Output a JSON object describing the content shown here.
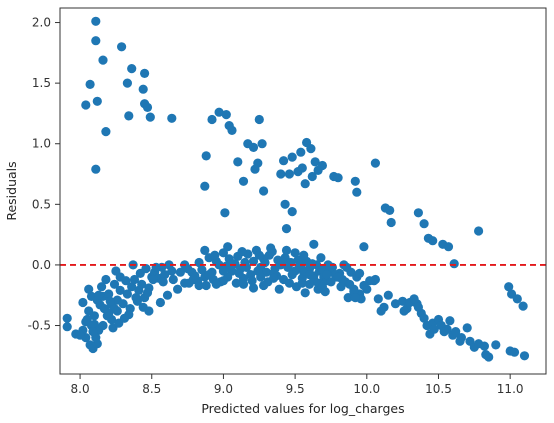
{
  "chart_data": {
    "type": "scatter",
    "title": "",
    "xlabel": "Predicted values for log_charges",
    "ylabel": "Residuals",
    "xlim": [
      7.86,
      11.25
    ],
    "ylim": [
      -0.9,
      2.12
    ],
    "xticks": [
      "8.0",
      "8.5",
      "9.0",
      "9.5",
      "10.0",
      "10.5",
      "11.0"
    ],
    "yticks": [
      "-0.5",
      "0.0",
      "0.5",
      "1.0",
      "1.5",
      "2.0"
    ],
    "grid": false,
    "point_color": "#1f77b4",
    "reference_line": {
      "y": 0.0,
      "color": "#e31a1c",
      "style": "dashed"
    },
    "points": [
      [
        8.11,
        2.01
      ],
      [
        8.11,
        1.85
      ],
      [
        8.29,
        1.8
      ],
      [
        8.36,
        1.62
      ],
      [
        8.45,
        1.58
      ],
      [
        8.16,
        1.69
      ],
      [
        8.07,
        1.49
      ],
      [
        8.33,
        1.5
      ],
      [
        8.44,
        1.45
      ],
      [
        8.04,
        1.32
      ],
      [
        8.12,
        1.35
      ],
      [
        8.18,
        1.1
      ],
      [
        8.45,
        1.33
      ],
      [
        8.47,
        1.3
      ],
      [
        8.49,
        1.22
      ],
      [
        8.34,
        1.23
      ],
      [
        8.64,
        1.21
      ],
      [
        8.11,
        0.79
      ],
      [
        8.97,
        1.26
      ],
      [
        9.02,
        1.24
      ],
      [
        8.92,
        1.2
      ],
      [
        9.04,
        1.15
      ],
      [
        9.06,
        1.11
      ],
      [
        9.25,
        1.2
      ],
      [
        9.17,
        1.0
      ],
      [
        9.21,
        0.97
      ],
      [
        9.27,
        1.0
      ],
      [
        9.1,
        0.85
      ],
      [
        9.24,
        0.84
      ],
      [
        8.88,
        0.9
      ],
      [
        9.14,
        0.69
      ],
      [
        8.87,
        0.65
      ],
      [
        9.01,
        0.43
      ],
      [
        9.28,
        0.61
      ],
      [
        9.22,
        0.79
      ],
      [
        9.42,
        0.86
      ],
      [
        9.48,
        0.89
      ],
      [
        9.54,
        0.93
      ],
      [
        9.58,
        1.01
      ],
      [
        9.52,
        0.77
      ],
      [
        9.4,
        0.75
      ],
      [
        9.46,
        0.75
      ],
      [
        9.55,
        0.8
      ],
      [
        9.61,
        0.96
      ],
      [
        9.64,
        0.85
      ],
      [
        9.66,
        0.78
      ],
      [
        9.69,
        0.82
      ],
      [
        9.77,
        0.73
      ],
      [
        9.8,
        0.72
      ],
      [
        9.92,
        0.69
      ],
      [
        9.93,
        0.6
      ],
      [
        10.06,
        0.84
      ],
      [
        9.57,
        0.67
      ],
      [
        9.62,
        0.73
      ],
      [
        9.43,
        0.5
      ],
      [
        9.48,
        0.44
      ],
      [
        9.44,
        0.3
      ],
      [
        9.63,
        0.17
      ],
      [
        10.13,
        0.47
      ],
      [
        10.16,
        0.45
      ],
      [
        10.17,
        0.35
      ],
      [
        10.36,
        0.43
      ],
      [
        10.43,
        0.22
      ],
      [
        10.46,
        0.2
      ],
      [
        10.4,
        0.34
      ],
      [
        10.53,
        0.17
      ],
      [
        10.57,
        0.15
      ],
      [
        10.61,
        0.01
      ],
      [
        10.78,
        0.28
      ],
      [
        7.91,
        -0.44
      ],
      [
        7.91,
        -0.51
      ],
      [
        7.97,
        -0.57
      ],
      [
        8.02,
        -0.54
      ],
      [
        8.04,
        -0.6
      ],
      [
        8.07,
        -0.66
      ],
      [
        8.09,
        -0.69
      ],
      [
        8.12,
        -0.65
      ],
      [
        8.04,
        -0.47
      ],
      [
        8.06,
        -0.38
      ],
      [
        8.1,
        -0.42
      ],
      [
        8.14,
        -0.33
      ],
      [
        8.02,
        -0.31
      ],
      [
        8.08,
        -0.26
      ],
      [
        8.12,
        -0.29
      ],
      [
        8.16,
        -0.26
      ],
      [
        8.2,
        -0.24
      ],
      [
        8.15,
        -0.18
      ],
      [
        8.22,
        -0.33
      ],
      [
        8.06,
        -0.2
      ],
      [
        8.1,
        -0.49
      ],
      [
        8.13,
        -0.54
      ],
      [
        8.16,
        -0.5
      ],
      [
        8.19,
        -0.42
      ],
      [
        8.22,
        -0.45
      ],
      [
        8.24,
        -0.36
      ],
      [
        8.26,
        -0.29
      ],
      [
        8.28,
        -0.21
      ],
      [
        8.3,
        -0.32
      ],
      [
        8.33,
        -0.24
      ],
      [
        8.36,
        -0.18
      ],
      [
        8.38,
        -0.12
      ],
      [
        8.41,
        -0.21
      ],
      [
        8.43,
        -0.16
      ],
      [
        8.45,
        -0.27
      ],
      [
        8.48,
        -0.19
      ],
      [
        8.5,
        -0.1
      ],
      [
        8.52,
        -0.06
      ],
      [
        8.55,
        -0.11
      ],
      [
        8.57,
        -0.02
      ],
      [
        8.59,
        -0.08
      ],
      [
        8.62,
        0.0
      ],
      [
        8.64,
        -0.05
      ],
      [
        8.2,
        -0.4
      ],
      [
        8.24,
        -0.16
      ],
      [
        8.28,
        -0.1
      ],
      [
        8.32,
        -0.13
      ],
      [
        8.35,
        -0.36
      ],
      [
        8.4,
        -0.3
      ],
      [
        8.44,
        -0.35
      ],
      [
        8.47,
        -0.23
      ],
      [
        8.51,
        -0.12
      ],
      [
        8.34,
        -0.41
      ],
      [
        8.18,
        -0.12
      ],
      [
        8.25,
        -0.05
      ],
      [
        8.37,
        0.0
      ],
      [
        8.42,
        -0.07
      ],
      [
        8.46,
        -0.03
      ],
      [
        8.53,
        -0.02
      ],
      [
        8.58,
        -0.14
      ],
      [
        8.65,
        -0.12
      ],
      [
        8.7,
        -0.06
      ],
      [
        8.73,
        -0.15
      ],
      [
        8.68,
        -0.2
      ],
      [
        8.61,
        -0.25
      ],
      [
        8.56,
        -0.31
      ],
      [
        8.48,
        -0.38
      ],
      [
        8.17,
        -0.36
      ],
      [
        8.13,
        -0.25
      ],
      [
        8.08,
        -0.5
      ],
      [
        8.11,
        -0.6
      ],
      [
        8.23,
        -0.52
      ],
      [
        8.27,
        -0.48
      ],
      [
        8.31,
        -0.44
      ],
      [
        8.39,
        -0.27
      ],
      [
        8.26,
        -0.38
      ],
      [
        8.21,
        -0.3
      ],
      [
        8.05,
        -0.45
      ],
      [
        8.0,
        -0.58
      ],
      [
        8.09,
        -0.55
      ],
      [
        8.73,
        0.0
      ],
      [
        8.75,
        -0.03
      ],
      [
        8.78,
        -0.06
      ],
      [
        8.8,
        -0.09
      ],
      [
        8.83,
        0.02
      ],
      [
        8.85,
        -0.04
      ],
      [
        8.87,
        -0.1
      ],
      [
        8.9,
        0.06
      ],
      [
        8.92,
        -0.06
      ],
      [
        8.95,
        0.03
      ],
      [
        8.97,
        0.0
      ],
      [
        9.0,
        0.1
      ],
      [
        9.02,
        -0.01
      ],
      [
        9.04,
        0.05
      ],
      [
        9.06,
        -0.05
      ],
      [
        9.08,
        0.01
      ],
      [
        9.1,
        0.07
      ],
      [
        9.12,
        -0.03
      ],
      [
        9.15,
        0.02
      ],
      [
        9.17,
        0.09
      ],
      [
        9.19,
        -0.08
      ],
      [
        9.21,
        0.03
      ],
      [
        9.23,
        0.12
      ],
      [
        9.26,
        -0.02
      ],
      [
        9.28,
        0.05
      ],
      [
        9.3,
        -0.06
      ],
      [
        9.32,
        0.08
      ],
      [
        9.34,
        0.11
      ],
      [
        9.36,
        -0.03
      ],
      [
        9.38,
        0.04
      ],
      [
        9.4,
        0.0
      ],
      [
        9.43,
        0.06
      ],
      [
        9.45,
        -0.02
      ],
      [
        9.47,
        0.02
      ],
      [
        9.5,
        -0.05
      ],
      [
        9.52,
        0.04
      ],
      [
        9.54,
        0.0
      ],
      [
        9.56,
        -0.06
      ],
      [
        9.58,
        0.03
      ],
      [
        9.6,
        -0.03
      ],
      [
        9.63,
        -0.09
      ],
      [
        9.65,
        0.0
      ],
      [
        9.67,
        -0.05
      ],
      [
        9.7,
        -0.1
      ],
      [
        9.72,
        -0.13
      ],
      [
        9.74,
        -0.06
      ],
      [
        9.76,
        -0.02
      ],
      [
        9.79,
        -0.1
      ],
      [
        9.81,
        -0.07
      ],
      [
        9.83,
        -0.12
      ],
      [
        8.82,
        -0.13
      ],
      [
        8.88,
        -0.17
      ],
      [
        8.93,
        -0.12
      ],
      [
        8.98,
        -0.14
      ],
      [
        9.03,
        -0.1
      ],
      [
        9.09,
        -0.15
      ],
      [
        9.14,
        -0.11
      ],
      [
        9.2,
        -0.13
      ],
      [
        9.26,
        -0.1
      ],
      [
        9.31,
        -0.14
      ],
      [
        9.37,
        -0.09
      ],
      [
        9.42,
        -0.12
      ],
      [
        9.46,
        -0.15
      ],
      [
        9.51,
        -0.18
      ],
      [
        9.55,
        -0.11
      ],
      [
        9.6,
        -0.16
      ],
      [
        9.66,
        -0.2
      ],
      [
        8.76,
        -0.15
      ],
      [
        8.79,
        -0.12
      ],
      [
        9.11,
        -0.07
      ],
      [
        9.24,
        -0.05
      ],
      [
        9.35,
        -0.07
      ],
      [
        9.48,
        -0.08
      ],
      [
        9.62,
        0.01
      ],
      [
        9.69,
        -0.04
      ],
      [
        8.9,
        -0.08
      ],
      [
        9.0,
        -0.05
      ],
      [
        9.05,
        0.0
      ],
      [
        9.16,
        -0.02
      ],
      [
        9.29,
        0.02
      ],
      [
        9.41,
        0.03
      ],
      [
        9.53,
        -0.02
      ],
      [
        9.98,
        0.15
      ],
      [
        9.03,
        0.15
      ],
      [
        8.87,
        0.12
      ],
      [
        8.94,
        0.08
      ],
      [
        9.13,
        0.11
      ],
      [
        9.25,
        0.08
      ],
      [
        9.33,
        0.14
      ],
      [
        9.44,
        0.12
      ],
      [
        9.5,
        0.1
      ],
      [
        9.56,
        0.08
      ],
      [
        9.68,
        0.06
      ],
      [
        9.73,
        0.0
      ],
      [
        9.78,
        -0.08
      ],
      [
        9.85,
        -0.14
      ],
      [
        9.88,
        -0.16
      ],
      [
        9.91,
        -0.2
      ],
      [
        9.95,
        -0.24
      ],
      [
        9.84,
        0.0
      ],
      [
        9.86,
        -0.02
      ],
      [
        9.89,
        -0.06
      ],
      [
        9.93,
        -0.1
      ],
      [
        9.95,
        -0.07
      ],
      [
        9.14,
        -0.16
      ],
      [
        9.0,
        -0.13
      ],
      [
        9.35,
        -0.11
      ],
      [
        9.39,
        -0.2
      ],
      [
        9.57,
        -0.23
      ],
      [
        9.71,
        -0.22
      ],
      [
        9.55,
        -0.15
      ],
      [
        9.82,
        -0.18
      ],
      [
        9.21,
        -0.19
      ],
      [
        9.28,
        -0.17
      ],
      [
        8.95,
        -0.16
      ],
      [
        8.83,
        -0.17
      ],
      [
        9.57,
        -0.05
      ],
      [
        9.6,
        -0.08
      ],
      [
        9.63,
        -0.12
      ],
      [
        9.66,
        -0.15
      ],
      [
        9.69,
        -0.18
      ],
      [
        9.72,
        -0.08
      ],
      [
        9.75,
        -0.14
      ],
      [
        9.87,
        -0.27
      ],
      [
        9.91,
        -0.22
      ],
      [
        9.96,
        -0.28
      ],
      [
        10.0,
        -0.2
      ],
      [
        10.05,
        -0.13
      ],
      [
        10.08,
        -0.28
      ],
      [
        10.1,
        -0.38
      ],
      [
        10.15,
        -0.25
      ],
      [
        10.2,
        -0.32
      ],
      [
        10.25,
        -0.3
      ],
      [
        10.28,
        -0.36
      ],
      [
        10.3,
        -0.31
      ],
      [
        10.35,
        -0.32
      ],
      [
        10.38,
        -0.4
      ],
      [
        10.4,
        -0.44
      ],
      [
        10.42,
        -0.5
      ],
      [
        10.44,
        -0.57
      ],
      [
        10.46,
        -0.48
      ],
      [
        10.5,
        -0.45
      ],
      [
        10.52,
        -0.5
      ],
      [
        10.56,
        -0.53
      ],
      [
        10.58,
        -0.46
      ],
      [
        10.6,
        -0.58
      ],
      [
        10.62,
        -0.55
      ],
      [
        10.66,
        -0.6
      ],
      [
        10.7,
        -0.52
      ],
      [
        10.72,
        -0.63
      ],
      [
        10.75,
        -0.68
      ],
      [
        10.78,
        -0.65
      ],
      [
        10.82,
        -0.67
      ],
      [
        10.85,
        -0.76
      ],
      [
        10.9,
        -0.66
      ],
      [
        11.0,
        -0.71
      ],
      [
        11.03,
        -0.72
      ],
      [
        11.1,
        -0.75
      ],
      [
        10.99,
        -0.18
      ],
      [
        11.01,
        -0.24
      ],
      [
        11.05,
        -0.28
      ],
      [
        11.09,
        -0.34
      ],
      [
        10.06,
        -0.12
      ],
      [
        10.26,
        -0.38
      ],
      [
        10.36,
        -0.35
      ],
      [
        10.47,
        -0.53
      ],
      [
        10.65,
        -0.63
      ],
      [
        10.02,
        -0.13
      ],
      [
        9.92,
        -0.27
      ],
      [
        9.98,
        -0.17
      ],
      [
        9.8,
        -0.1
      ],
      [
        10.12,
        -0.35
      ],
      [
        10.33,
        -0.28
      ],
      [
        10.54,
        -0.55
      ],
      [
        10.83,
        -0.74
      ]
    ]
  }
}
